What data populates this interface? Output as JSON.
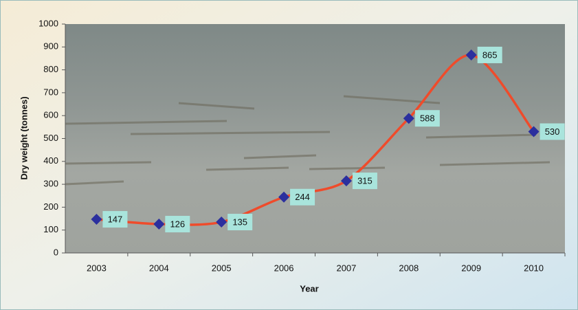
{
  "chart_data": {
    "type": "line",
    "x_label": "Year",
    "y_label": "Dry weight (tonnes)",
    "categories": [
      "2003",
      "2004",
      "2005",
      "2006",
      "2007",
      "2008",
      "2009",
      "2010"
    ],
    "series": [
      {
        "name": "Dry weight",
        "color": "#ef4b2b",
        "marker_color": "#2b2f9e",
        "label_color": "#a9e4dc",
        "values": [
          147,
          126,
          135,
          244,
          315,
          588,
          865,
          530
        ]
      }
    ],
    "ylim": [
      0,
      1000
    ],
    "yticks": [
      0,
      100,
      200,
      300,
      400,
      500,
      600,
      700,
      800,
      900,
      1000
    ]
  }
}
